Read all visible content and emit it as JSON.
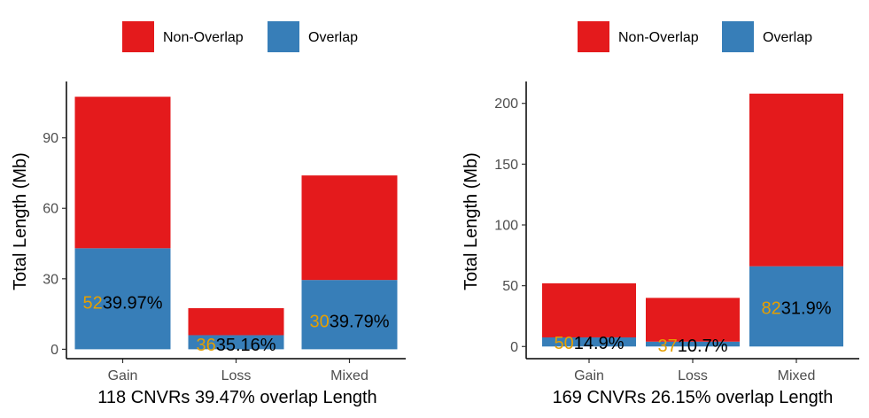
{
  "chart_data": [
    {
      "type": "bar",
      "stacked": true,
      "categories": [
        "Gain",
        "Loss",
        "Mixed"
      ],
      "series": [
        {
          "name": "Overlap",
          "values": [
            43,
            6,
            29.5
          ]
        },
        {
          "name": "Non-Overlap",
          "values": [
            64.5,
            11.5,
            44.5
          ]
        }
      ],
      "count_labels": [
        "52",
        "36",
        "30"
      ],
      "pct_labels": [
        "39.97%",
        "35.16%",
        "39.79%"
      ],
      "label_y": [
        20,
        2,
        12
      ],
      "ylabel": "Total Length (Mb)",
      "xlabel": "118 CNVRs 39.47% overlap Length",
      "yticks": [
        0,
        30,
        60,
        90
      ],
      "ylim": [
        -4,
        114
      ],
      "legend": {
        "position": "top",
        "entries": [
          "Non-Overlap",
          "Overlap"
        ]
      },
      "colors": {
        "Overlap": "#377EB8",
        "Non-Overlap": "#E41A1C"
      },
      "grid": false
    },
    {
      "type": "bar",
      "stacked": true,
      "categories": [
        "Gain",
        "Loss",
        "Mixed"
      ],
      "series": [
        {
          "name": "Overlap",
          "values": [
            7.5,
            4,
            66
          ]
        },
        {
          "name": "Non-Overlap",
          "values": [
            44.5,
            36,
            142
          ]
        }
      ],
      "count_labels": [
        "50",
        "37",
        "82"
      ],
      "pct_labels": [
        "14.9%",
        "10.7%",
        "31.9%"
      ],
      "label_y": [
        3,
        1,
        32
      ],
      "ylabel": "Total Length (Mb)",
      "xlabel": "169 CNVRs 26.15% overlap Length",
      "yticks": [
        0,
        50,
        100,
        150,
        200
      ],
      "ylim": [
        -10,
        218
      ],
      "legend": {
        "position": "top",
        "entries": [
          "Non-Overlap",
          "Overlap"
        ]
      },
      "colors": {
        "Overlap": "#377EB8",
        "Non-Overlap": "#E41A1C"
      },
      "grid": false
    }
  ]
}
